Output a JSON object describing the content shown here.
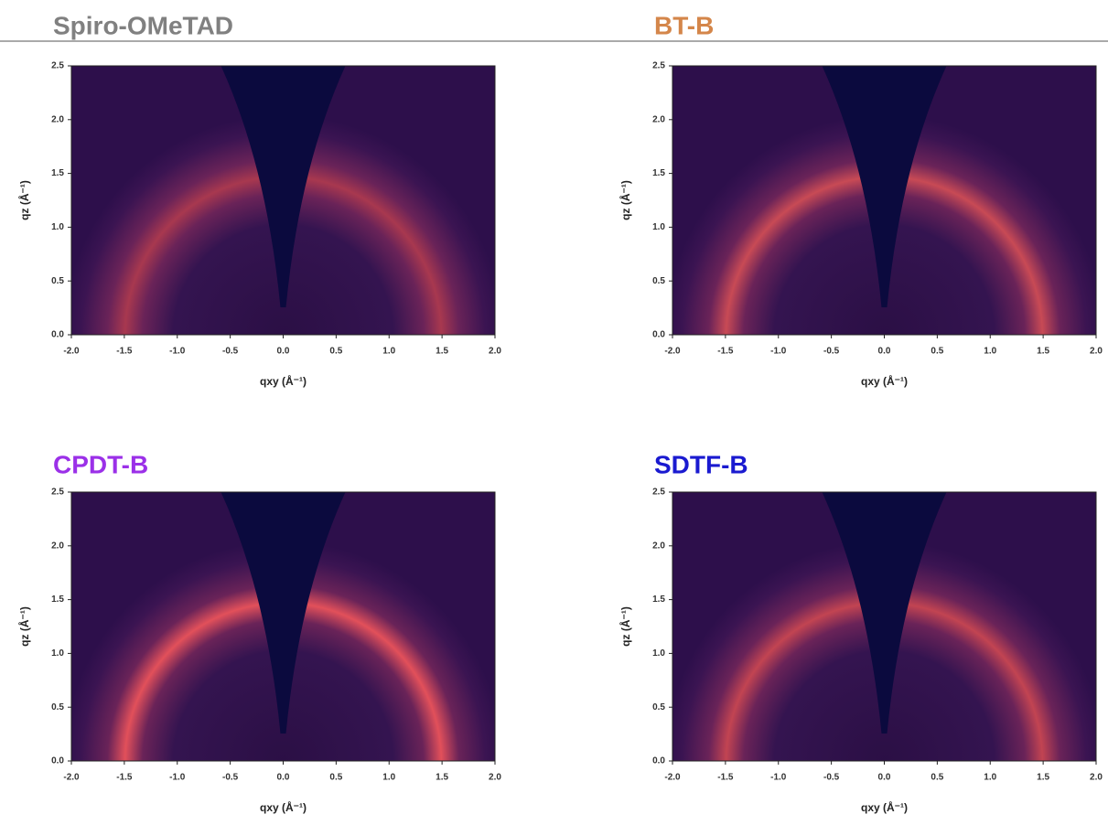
{
  "chart_data": [
    {
      "type": "heatmap",
      "title": "Spiro-OMeTAD",
      "title_color": "#808080",
      "xlabel": "qxy (Å⁻¹)",
      "ylabel": "qz (Å⁻¹)",
      "xlim": [
        -2,
        2
      ],
      "ylim": [
        0,
        2.5
      ],
      "xticks": [
        {
          "value": -2,
          "label": "-2.0"
        },
        -1.5,
        {
          "value": -1,
          "label": "-1.0"
        },
        -0.5,
        {
          "value": 0,
          "label": "0.0"
        },
        0.5,
        {
          "value": 1,
          "label": "1.0"
        },
        1.5,
        {
          "value": 2,
          "label": "2.0"
        }
      ],
      "yticks": [
        {
          "value": 0,
          "label": "0.0"
        },
        0.5,
        {
          "value": 1,
          "label": "1.0"
        },
        1.5,
        {
          "value": 2,
          "label": "2.0"
        },
        2.5
      ]
    },
    {
      "type": "heatmap",
      "title": "BT-B",
      "title_color": "#d4864a",
      "xlabel": "qxy (Å⁻¹)",
      "ylabel": "qz (Å⁻¹)",
      "xlim": [
        -2,
        2
      ],
      "ylim": [
        0,
        2.5
      ],
      "xticks": [
        {
          "value": -2,
          "label": "-2.0"
        },
        -1.5,
        {
          "value": -1,
          "label": "-1.0"
        },
        -0.5,
        {
          "value": 0,
          "label": "0.0"
        },
        0.5,
        {
          "value": 1,
          "label": "1.0"
        },
        1.5,
        {
          "value": 2,
          "label": "2.0"
        }
      ],
      "yticks": [
        {
          "value": 0,
          "label": "0.0"
        },
        0.5,
        {
          "value": 1,
          "label": "1.0"
        },
        1.5,
        {
          "value": 2,
          "label": "2.0"
        },
        2.5
      ]
    },
    {
      "type": "heatmap",
      "title": "CPDT-B",
      "title_color": "#9b30e8",
      "xlabel": "qxy (Å⁻¹)",
      "ylabel": "qz (Å⁻¹)",
      "xlim": [
        -2,
        2
      ],
      "ylim": [
        0,
        2.5
      ],
      "xticks": [
        {
          "value": -2,
          "label": "-2.0"
        },
        -1.5,
        {
          "value": -1,
          "label": "-1.0"
        },
        -0.5,
        {
          "value": 0,
          "label": "0.0"
        },
        0.5,
        {
          "value": 1,
          "label": "1.0"
        },
        1.5,
        {
          "value": 2,
          "label": "2.0"
        }
      ],
      "yticks": [
        {
          "value": 0,
          "label": "0.0"
        },
        0.5,
        {
          "value": 1,
          "label": "1.0"
        },
        1.5,
        {
          "value": 2,
          "label": "2.0"
        },
        2.5
      ]
    },
    {
      "type": "heatmap",
      "title": "SDTF-B",
      "title_color": "#1a1ad0",
      "xlabel": "qxy (Å⁻¹)",
      "ylabel": "qz (Å⁻¹)",
      "xlim": [
        -2,
        2
      ],
      "ylim": [
        0,
        2.5
      ],
      "xticks": [
        {
          "value": -2,
          "label": "-2.0"
        },
        -1.5,
        {
          "value": -1,
          "label": "-1.0"
        },
        -0.5,
        {
          "value": 0,
          "label": "0.0"
        },
        0.5,
        {
          "value": 1,
          "label": "1.0"
        },
        1.5,
        {
          "value": 2,
          "label": "2.0"
        }
      ],
      "yticks": [
        {
          "value": 0,
          "label": "0.0"
        },
        0.5,
        {
          "value": 1,
          "label": "1.0"
        },
        1.5,
        {
          "value": 2,
          "label": "2.0"
        },
        2.5
      ]
    }
  ]
}
